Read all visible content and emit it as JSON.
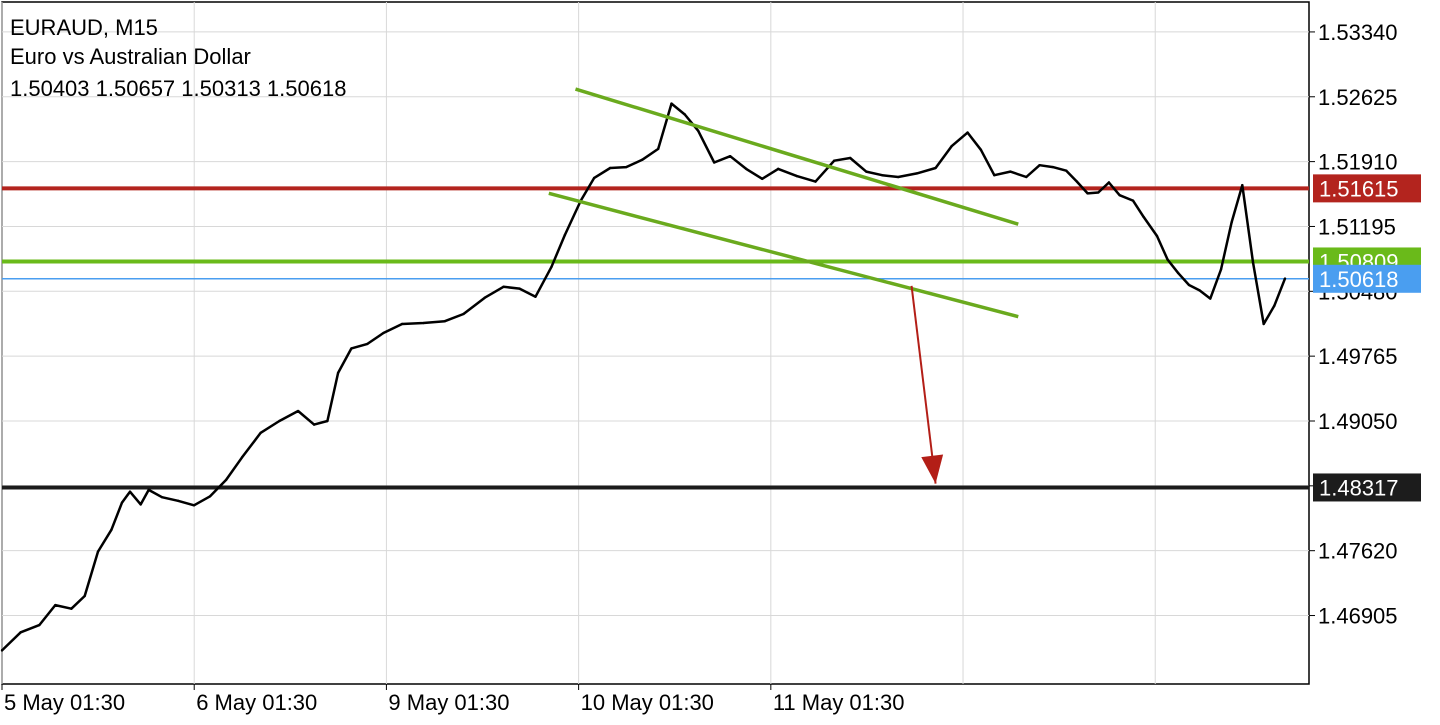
{
  "header": {
    "symbol_line": "EURAUD, M15",
    "description": "Euro vs Australian Dollar",
    "ohlc": "1.50403 1.50657 1.50313 1.50618"
  },
  "chart_data": {
    "type": "line",
    "symbol": "EURAUD",
    "timeframe": "M15",
    "ylim": [
      1.4615,
      1.5367
    ],
    "x_tick_labels": [
      "5 May 01:30",
      "6 May 01:30",
      "9 May 01:30",
      "10 May 01:30",
      "11 May 01:30"
    ],
    "x_range_bars": 490,
    "y_ticks": [
      1.5334,
      1.52625,
      1.5191,
      1.51195,
      1.5048,
      1.49765,
      1.4905,
      1.48335,
      1.4762,
      1.46905
    ],
    "y_tick_labels": [
      "1.53340",
      "1.52625",
      "1.51910",
      "1.51195",
      "1.50480",
      "1.49765",
      "1.49050",
      "",
      "1.47620",
      "1.46905"
    ],
    "grid": true,
    "price_series": {
      "name": "EURAUD",
      "color": "#000000",
      "x": [
        0,
        7,
        14,
        20,
        26,
        31,
        36,
        41,
        45,
        48,
        52,
        55,
        60,
        66,
        72,
        78,
        84,
        90,
        97,
        104,
        111,
        117,
        122,
        126,
        131,
        137,
        143,
        150,
        158,
        166,
        173,
        181,
        188,
        194,
        200,
        206,
        211,
        217,
        222,
        228,
        234,
        240,
        246,
        251,
        256,
        261,
        267,
        273,
        279,
        285,
        291,
        298,
        305,
        312,
        318,
        324,
        330,
        336,
        343,
        350,
        356,
        362,
        367,
        372,
        378,
        384,
        389,
        394,
        399,
        403,
        407,
        411,
        415,
        419,
        424,
        428,
        433,
        437,
        441,
        445,
        449,
        453,
        457,
        461,
        465,
        469,
        473,
        477,
        481
      ],
      "y": [
        1.4652,
        1.4672,
        1.468,
        1.4702,
        1.4698,
        1.4712,
        1.4761,
        1.4785,
        1.4815,
        1.4827,
        1.4813,
        1.4829,
        1.4821,
        1.4817,
        1.4812,
        1.4822,
        1.484,
        1.4865,
        1.4892,
        1.4905,
        1.4916,
        1.4901,
        1.4905,
        1.4958,
        1.4985,
        1.499,
        1.5002,
        1.5012,
        1.5013,
        1.5015,
        1.5023,
        1.5041,
        1.5053,
        1.5051,
        1.5042,
        1.5075,
        1.511,
        1.5148,
        1.5173,
        1.5184,
        1.5185,
        1.5193,
        1.5205,
        1.5255,
        1.5243,
        1.5225,
        1.519,
        1.5197,
        1.5183,
        1.5172,
        1.5183,
        1.5175,
        1.5169,
        1.5192,
        1.5195,
        1.518,
        1.5176,
        1.5174,
        1.5178,
        1.5184,
        1.5208,
        1.5223,
        1.5204,
        1.5176,
        1.518,
        1.5174,
        1.5187,
        1.5185,
        1.5181,
        1.5169,
        1.5156,
        1.5157,
        1.5168,
        1.5154,
        1.5148,
        1.513,
        1.5109,
        1.5083,
        1.5068,
        1.5055,
        1.5049,
        1.504,
        1.5072,
        1.5124,
        1.5165,
        1.508,
        1.5012,
        1.5032,
        1.5062
      ]
    },
    "channel_upper": {
      "x": [
        215,
        381
      ],
      "y": [
        1.5271,
        1.5122
      ],
      "color": "#6aaa1e"
    },
    "channel_lower": {
      "x": [
        205,
        381
      ],
      "y": [
        1.5156,
        1.502
      ],
      "color": "#6aaa1e"
    },
    "levels": [
      {
        "name": "resistance",
        "value": 1.51615,
        "label": "1.51615",
        "color": "#b3241e"
      },
      {
        "name": "channel-break",
        "value": 1.50809,
        "label": "1.50809",
        "color": "#6aba1a"
      },
      {
        "name": "current-price",
        "value": 1.50618,
        "label": "1.50618",
        "color": "#4a9ef0"
      },
      {
        "name": "target",
        "value": 1.48317,
        "label": "1.48317",
        "color": "#1c1c1c"
      }
    ],
    "projection_arrow": {
      "x": [
        341,
        350
      ],
      "y": [
        1.5054,
        1.4836
      ],
      "color": "#b31e17"
    }
  }
}
